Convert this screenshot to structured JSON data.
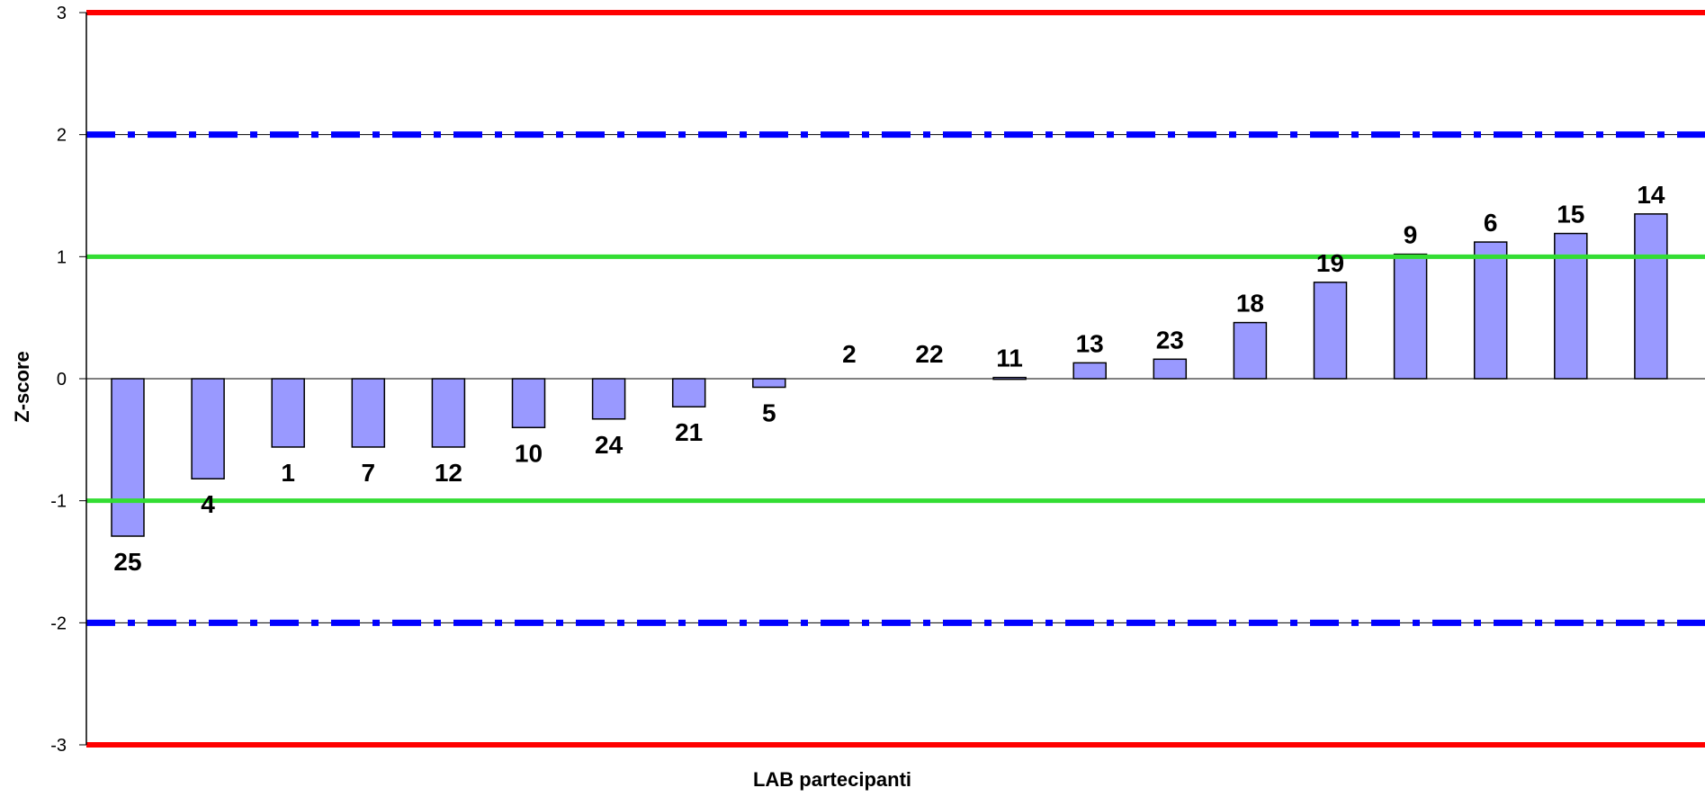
{
  "chart_data": {
    "type": "bar",
    "title": "",
    "xlabel": "LAB partecipanti",
    "ylabel": "Z-score",
    "ylim": [
      -3,
      3
    ],
    "yticks": [
      "3",
      "2",
      "1",
      "0",
      "-1",
      "-2",
      "-3"
    ],
    "grid": "horizontal",
    "legend": "none",
    "bar_color": "#9999ff",
    "bar_border_color": "#000000",
    "categories": [
      "25",
      "4",
      "1",
      "7",
      "12",
      "10",
      "24",
      "21",
      "5",
      "2",
      "22",
      "11",
      "13",
      "23",
      "18",
      "19",
      "9",
      "6",
      "15",
      "14"
    ],
    "values": [
      -1.29,
      -0.82,
      -0.56,
      -0.56,
      -0.56,
      -0.4,
      -0.33,
      -0.23,
      -0.07,
      0.0,
      0.0,
      0.01,
      0.13,
      0.16,
      0.46,
      0.79,
      1.02,
      1.12,
      1.19,
      1.35
    ],
    "reference_lines": [
      {
        "value": 3,
        "color": "#ff0000",
        "style": "solid"
      },
      {
        "value": -3,
        "color": "#ff0000",
        "style": "solid"
      },
      {
        "value": 2,
        "color": "#0000ff",
        "style": "dash-dot"
      },
      {
        "value": -2,
        "color": "#0000ff",
        "style": "dash-dot"
      },
      {
        "value": 1,
        "color": "#33dd33",
        "style": "solid"
      },
      {
        "value": -1,
        "color": "#33dd33",
        "style": "solid"
      }
    ]
  }
}
